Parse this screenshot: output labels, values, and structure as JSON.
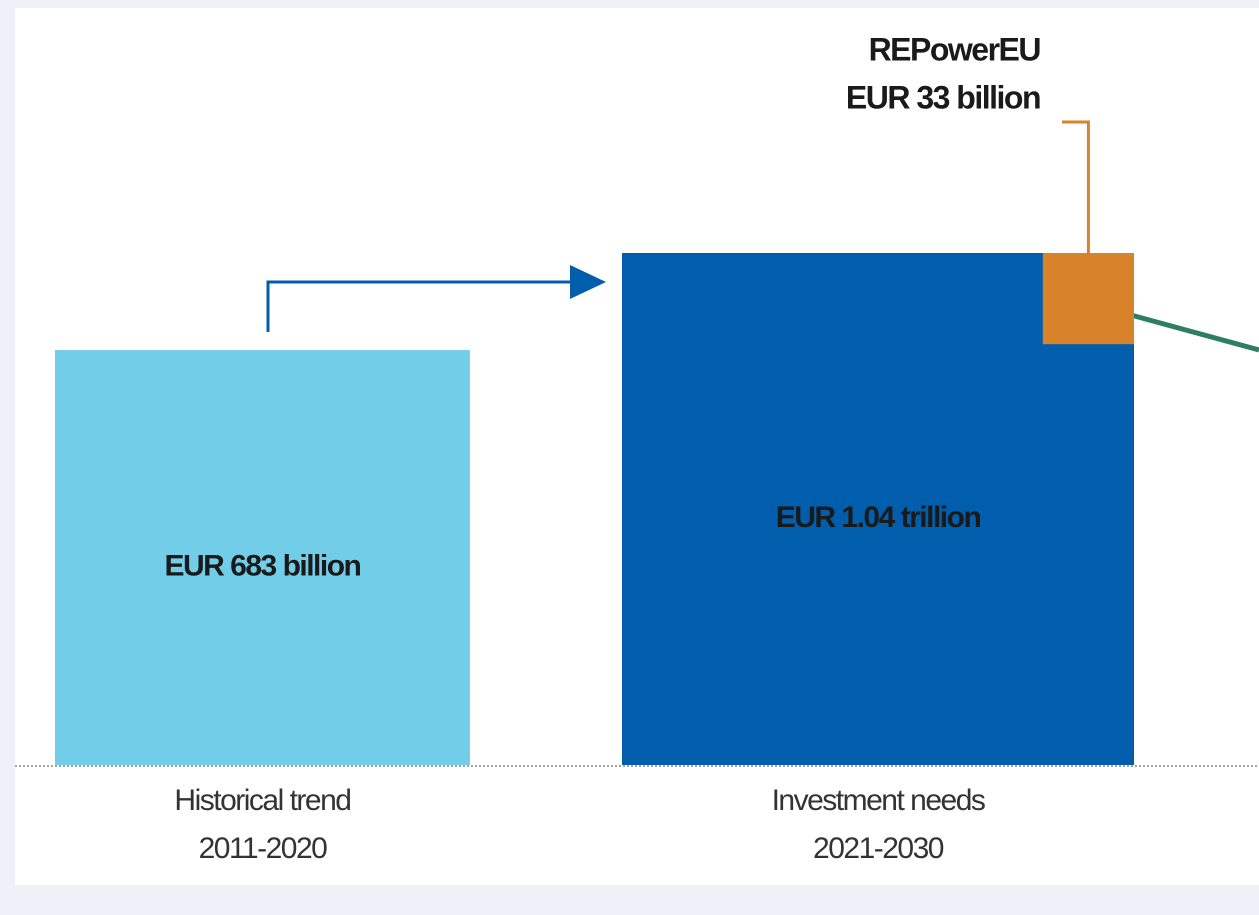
{
  "chart_data": {
    "type": "area-square",
    "categories": [
      "Historical trend",
      "Investment needs"
    ],
    "periods": [
      "2011-2020",
      "2021-2030"
    ],
    "values": [
      683,
      1040
    ],
    "value_labels": [
      "EUR 683 billion",
      "EUR 1.04 trillion"
    ],
    "colors": [
      "#72cde9",
      "#005eac"
    ],
    "highlight": {
      "name": "REPowerEU",
      "value": 33,
      "value_label": "EUR 33 billion",
      "color": "#d8832b"
    }
  }
}
